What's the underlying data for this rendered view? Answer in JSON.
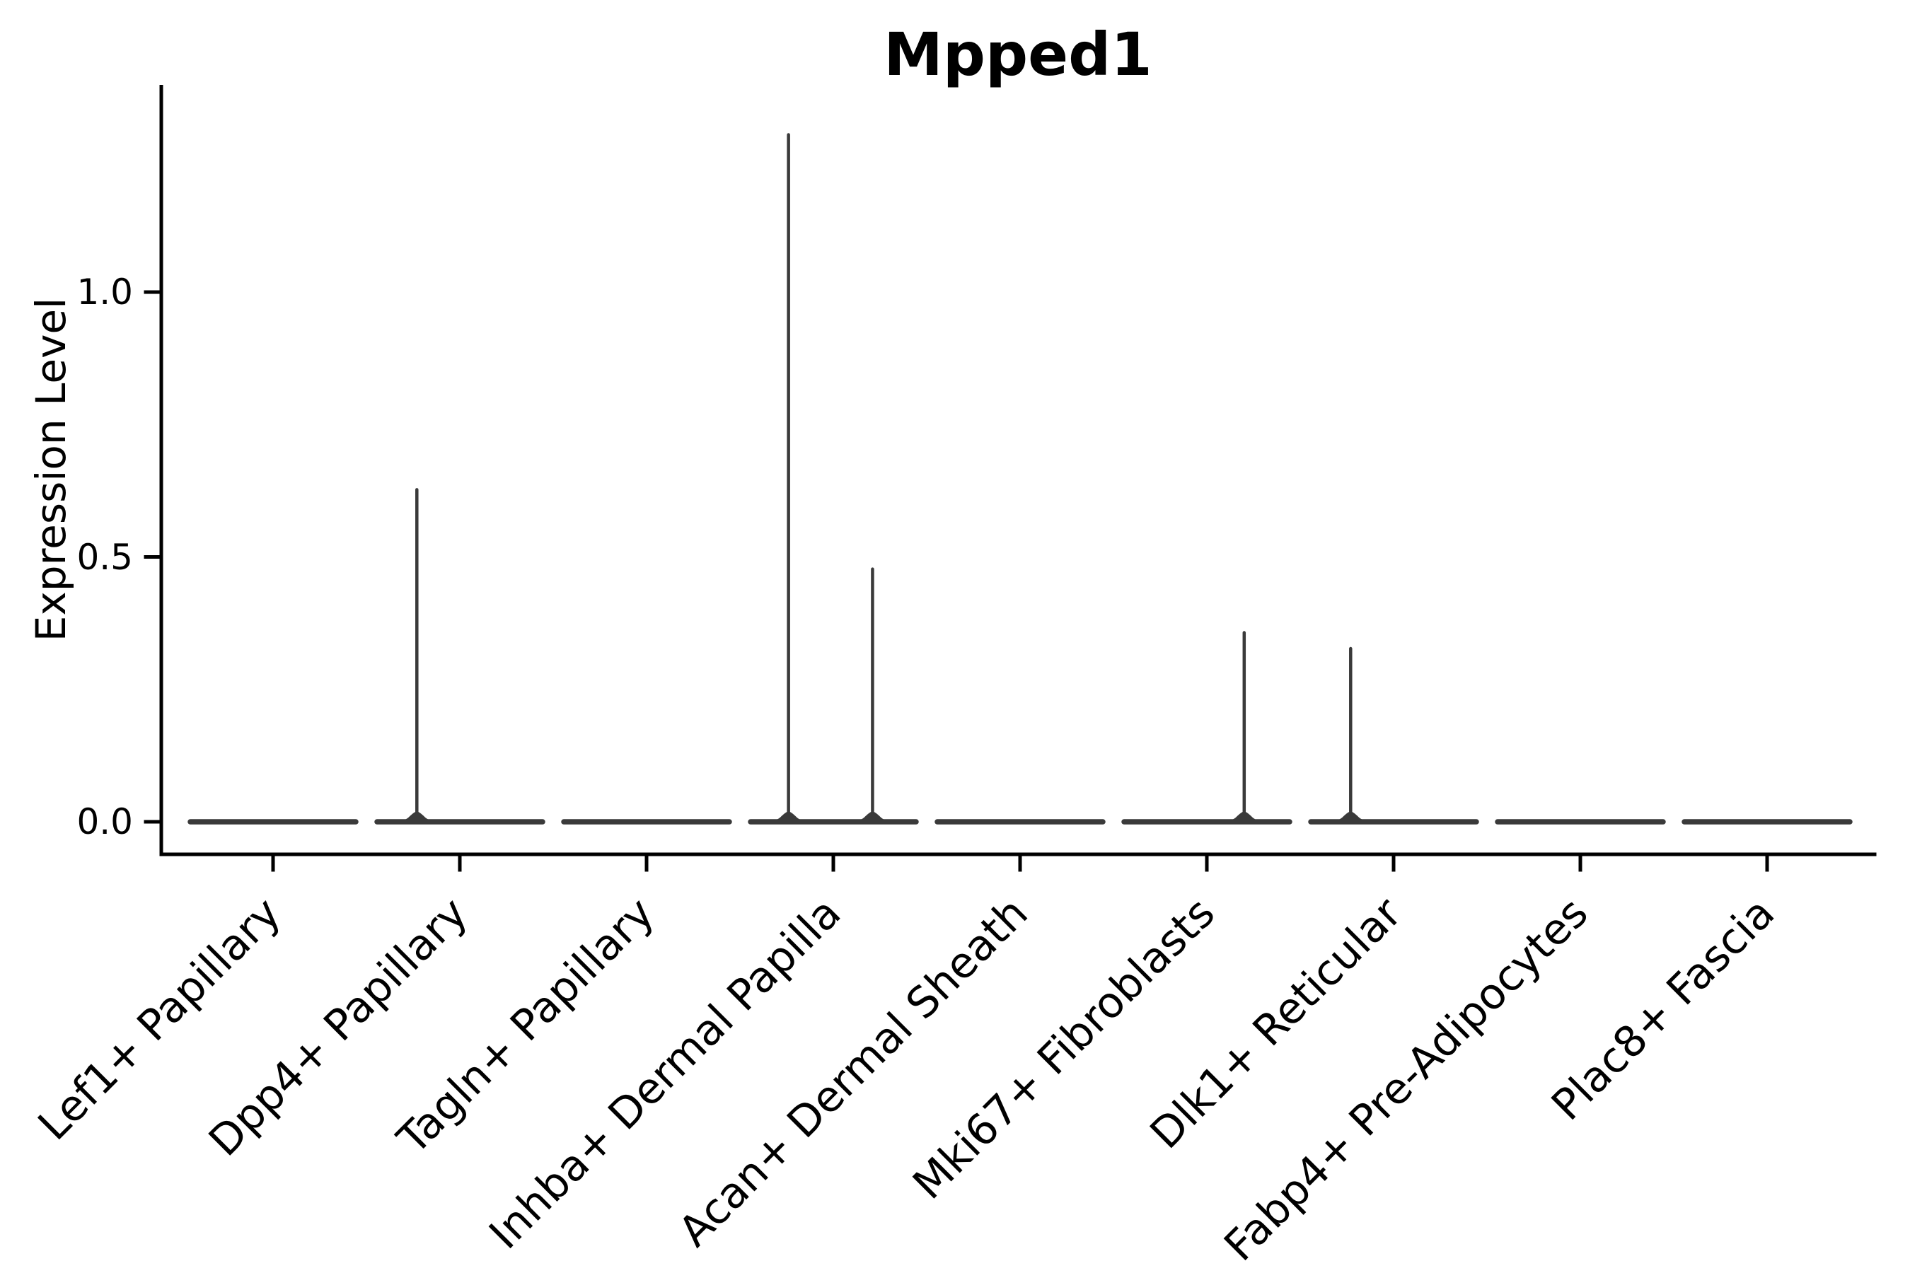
{
  "chart_data": {
    "type": "violin",
    "title": "Mpped1",
    "xlabel": "",
    "ylabel": "Expression Level",
    "ytick_labels": [
      "0.0",
      "0.5",
      "1.0"
    ],
    "ytick_values": [
      0.0,
      0.5,
      1.0
    ],
    "ylim": [
      -0.06,
      1.39
    ],
    "grid": false,
    "legend": null,
    "categories": [
      "Lef1+ Papillary",
      "Dpp4+ Papillary",
      "Tagln+ Papillary",
      "Inhba+ Dermal Papilla",
      "Acan+ Dermal Sheath",
      "Mki67+ Fibroblasts",
      "Dlk1+ Reticular",
      "Fabp4+ Pre-Adipocytes",
      "Plac8+ Fascia"
    ],
    "violins": [
      {
        "category": "Lef1+ Papillary",
        "baseline_value": 0.0,
        "spikes": []
      },
      {
        "category": "Dpp4+ Papillary",
        "baseline_value": 0.0,
        "spikes": [
          {
            "value": 0.63,
            "x_offset_frac": -0.23
          }
        ]
      },
      {
        "category": "Tagln+ Papillary",
        "baseline_value": 0.0,
        "spikes": []
      },
      {
        "category": "Inhba+ Dermal Papilla",
        "baseline_value": 0.0,
        "spikes": [
          {
            "value": 1.3,
            "x_offset_frac": -0.24
          },
          {
            "value": 0.48,
            "x_offset_frac": 0.21
          }
        ]
      },
      {
        "category": "Acan+ Dermal Sheath",
        "baseline_value": 0.0,
        "spikes": []
      },
      {
        "category": "Mki67+ Fibroblasts",
        "baseline_value": 0.0,
        "spikes": [
          {
            "value": 0.36,
            "x_offset_frac": 0.2
          }
        ]
      },
      {
        "category": "Dlk1+ Reticular",
        "baseline_value": 0.0,
        "spikes": [
          {
            "value": 0.33,
            "x_offset_frac": -0.23
          }
        ]
      },
      {
        "category": "Fabp4+ Pre-Adipocytes",
        "baseline_value": 0.0,
        "spikes": []
      },
      {
        "category": "Plac8+ Fascia",
        "baseline_value": 0.0,
        "spikes": []
      }
    ],
    "colors": {
      "violin_line": "#3a3a3a",
      "axis": "#000000",
      "text": "#000000",
      "background": "#ffffff"
    }
  }
}
